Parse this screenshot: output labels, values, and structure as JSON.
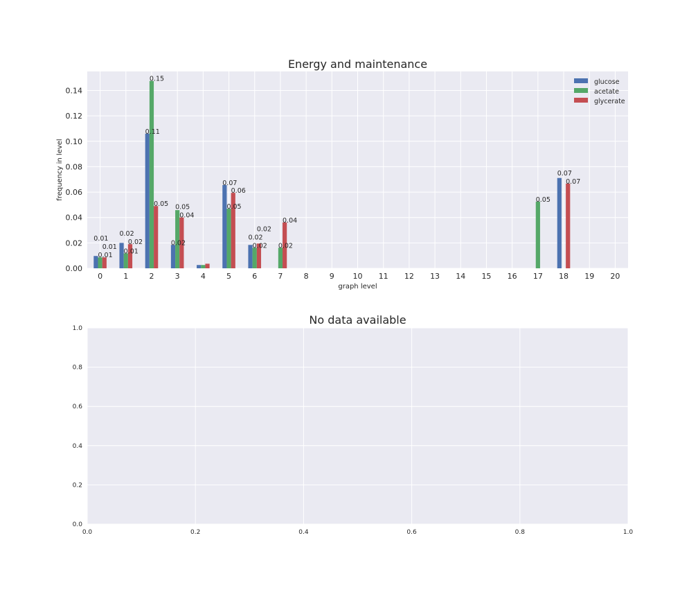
{
  "chart_data": [
    {
      "type": "bar",
      "title": "Energy and maintenance",
      "xlabel": "graph level",
      "ylabel": "frequency in level",
      "categories": [
        "0",
        "1",
        "2",
        "3",
        "4",
        "5",
        "6",
        "7",
        "8",
        "9",
        "10",
        "11",
        "12",
        "13",
        "14",
        "15",
        "16",
        "17",
        "18",
        "19",
        "20"
      ],
      "xlim": [
        -0.5,
        20.5
      ],
      "ylim": [
        0,
        0.155
      ],
      "yticks": [
        0.0,
        0.02,
        0.04,
        0.06,
        0.08,
        0.1,
        0.12,
        0.14
      ],
      "ytick_labels": [
        "0.00",
        "0.02",
        "0.04",
        "0.06",
        "0.08",
        "0.10",
        "0.12",
        "0.14"
      ],
      "grid": true,
      "legend_position": "top-right",
      "background": "#EAEAF2",
      "series": [
        {
          "name": "glucose",
          "color": "#4C72B0",
          "values": [
            0.0097,
            0.02,
            0.106,
            0.0184,
            0.0026,
            0.0655,
            0.0184,
            0,
            0,
            0,
            0,
            0,
            0,
            0,
            0,
            0,
            0,
            0,
            0.0711,
            0,
            0
          ],
          "labels": [
            "0.01",
            "0.02",
            "0.11",
            "0.02",
            null,
            "0.07",
            "0.02",
            null,
            null,
            null,
            null,
            null,
            null,
            null,
            null,
            null,
            null,
            null,
            "0.07",
            null,
            null
          ]
        },
        {
          "name": "acetate",
          "color": "#55A868",
          "values": [
            0.0086,
            0.0118,
            0.1475,
            0.0458,
            0.0026,
            0.0469,
            0.0162,
            0.0162,
            0,
            0,
            0,
            0,
            0,
            0,
            0,
            0,
            0,
            0.0525,
            0,
            0,
            0
          ],
          "labels": [
            "0.01",
            "0.01",
            "0.15",
            "0.05",
            null,
            "0.05",
            "0.02",
            "0.02",
            null,
            null,
            null,
            null,
            null,
            null,
            null,
            null,
            null,
            "0.05",
            null,
            null,
            null
          ]
        },
        {
          "name": "glycerate",
          "color": "#C44E52",
          "values": [
            0.0086,
            0.019,
            0.049,
            0.04,
            0.0036,
            0.0594,
            0.0195,
            0.0361,
            0,
            0,
            0,
            0,
            0,
            0,
            0,
            0,
            0,
            0,
            0.0667,
            0,
            0
          ],
          "labels": [
            "0.01",
            "0.02",
            "0.05",
            "0.04",
            null,
            "0.06",
            "0.02",
            "0.04",
            null,
            null,
            null,
            null,
            null,
            null,
            null,
            null,
            null,
            null,
            "0.07",
            null,
            null
          ]
        }
      ]
    },
    {
      "type": "bar",
      "title": "No data available",
      "xlim": [
        0,
        1
      ],
      "ylim": [
        0,
        1
      ],
      "xticks": [
        0.0,
        0.2,
        0.4,
        0.6,
        0.8,
        1.0
      ],
      "xtick_labels": [
        "0.0",
        "0.2",
        "0.4",
        "0.6",
        "0.8",
        "1.0"
      ],
      "yticks": [
        0.0,
        0.2,
        0.4,
        0.6,
        0.8,
        1.0
      ],
      "ytick_labels": [
        "0.0",
        "0.2",
        "0.4",
        "0.6",
        "0.8",
        "1.0"
      ],
      "grid": true,
      "background": "#EAEAF2",
      "series": []
    }
  ]
}
